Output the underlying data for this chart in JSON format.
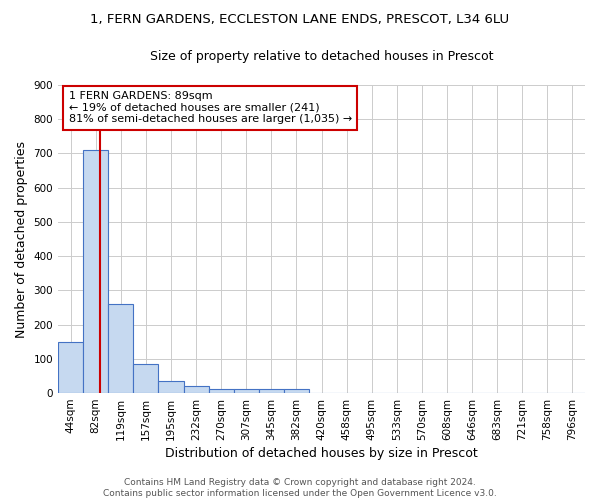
{
  "title": "1, FERN GARDENS, ECCLESTON LANE ENDS, PRESCOT, L34 6LU",
  "subtitle": "Size of property relative to detached houses in Prescot",
  "xlabel": "Distribution of detached houses by size in Prescot",
  "ylabel": "Number of detached properties",
  "bin_labels": [
    "44sqm",
    "82sqm",
    "119sqm",
    "157sqm",
    "195sqm",
    "232sqm",
    "270sqm",
    "307sqm",
    "345sqm",
    "382sqm",
    "420sqm",
    "458sqm",
    "495sqm",
    "533sqm",
    "570sqm",
    "608sqm",
    "646sqm",
    "683sqm",
    "721sqm",
    "758sqm",
    "796sqm"
  ],
  "bar_heights": [
    150,
    710,
    260,
    85,
    35,
    20,
    12,
    12,
    12,
    12,
    0,
    0,
    0,
    0,
    0,
    0,
    0,
    0,
    0,
    0,
    0
  ],
  "bar_color": "#c6d9f0",
  "bar_edge_color": "#4472c4",
  "property_line_x": 1.18,
  "property_line_color": "#cc0000",
  "annotation_text": "1 FERN GARDENS: 89sqm\n← 19% of detached houses are smaller (241)\n81% of semi-detached houses are larger (1,035) →",
  "annotation_box_color": "#cc0000",
  "annotation_text_color": "#000000",
  "ylim": [
    0,
    900
  ],
  "yticks": [
    0,
    100,
    200,
    300,
    400,
    500,
    600,
    700,
    800,
    900
  ],
  "footer": "Contains HM Land Registry data © Crown copyright and database right 2024.\nContains public sector information licensed under the Open Government Licence v3.0.",
  "grid_color": "#cccccc",
  "background_color": "#ffffff",
  "title_fontsize": 9.5,
  "subtitle_fontsize": 9,
  "axis_label_fontsize": 9,
  "tick_fontsize": 7.5,
  "annotation_fontsize": 8,
  "footer_fontsize": 6.5
}
